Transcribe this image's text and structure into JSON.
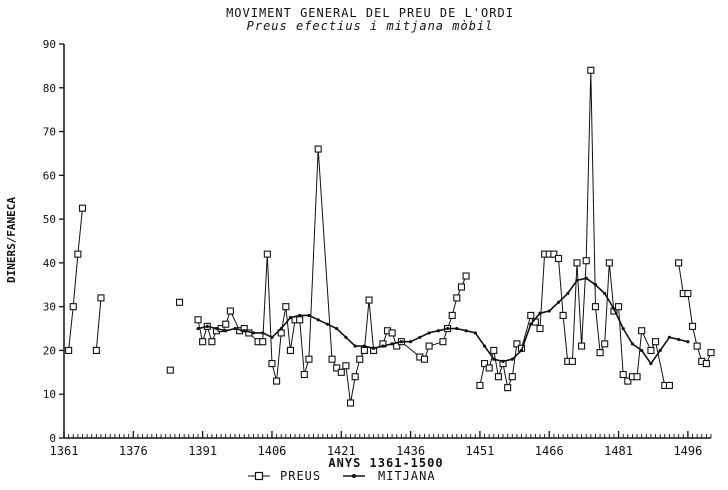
{
  "chart_data": {
    "type": "line",
    "title": "MOVIMENT GENERAL DEL PREU DE L'ORDI",
    "subtitle": "Preus efectius i mitjana mòbil",
    "xlabel": "ANYS 1361-1500",
    "ylabel": "DINERS/FANECA",
    "xlim": [
      1361,
      1501
    ],
    "ylim": [
      0,
      90
    ],
    "xticks": [
      1361,
      1376,
      1391,
      1406,
      1421,
      1436,
      1451,
      1466,
      1481,
      1496
    ],
    "yticks": [
      0,
      10,
      20,
      30,
      40,
      50,
      60,
      70,
      80,
      90
    ],
    "grid": false,
    "legend_position": "bottom-center",
    "series": [
      {
        "name": "PREUS",
        "marker": "square",
        "segments": [
          [
            [
              1362,
              20
            ],
            [
              1363,
              30
            ],
            [
              1364,
              42
            ],
            [
              1365,
              52.5
            ]
          ],
          [
            [
              1368,
              20
            ],
            [
              1369,
              32
            ]
          ],
          [
            [
              1384,
              15.5
            ]
          ],
          [
            [
              1386,
              31
            ]
          ],
          [
            [
              1390,
              27
            ],
            [
              1391,
              22
            ],
            [
              1392,
              25.5
            ],
            [
              1393,
              22
            ],
            [
              1394,
              24.5
            ],
            [
              1395,
              25
            ],
            [
              1396,
              26
            ],
            [
              1397,
              29
            ],
            [
              1399,
              24.5
            ],
            [
              1400,
              25
            ],
            [
              1401,
              24
            ],
            [
              1403,
              22
            ],
            [
              1404,
              22
            ],
            [
              1405,
              42
            ],
            [
              1406,
              17
            ],
            [
              1407,
              13
            ],
            [
              1408,
              24
            ],
            [
              1409,
              30
            ],
            [
              1410,
              20
            ],
            [
              1411,
              27
            ],
            [
              1412,
              27
            ],
            [
              1413,
              14.5
            ],
            [
              1414,
              18
            ],
            [
              1416,
              66
            ],
            [
              1419,
              18
            ],
            [
              1420,
              16
            ],
            [
              1421,
              15
            ],
            [
              1422,
              16.5
            ],
            [
              1423,
              8
            ],
            [
              1424,
              14
            ],
            [
              1425,
              18
            ],
            [
              1426,
              20
            ],
            [
              1427,
              31.5
            ],
            [
              1428,
              20
            ],
            [
              1430,
              21.5
            ],
            [
              1431,
              24.5
            ],
            [
              1432,
              24
            ],
            [
              1433,
              21
            ],
            [
              1434,
              22
            ],
            [
              1438,
              18.5
            ],
            [
              1439,
              18
            ],
            [
              1440,
              21
            ],
            [
              1443,
              22
            ],
            [
              1444,
              25
            ],
            [
              1445,
              28
            ],
            [
              1446,
              32
            ],
            [
              1447,
              34.5
            ],
            [
              1448,
              37
            ]
          ],
          [
            [
              1451,
              12
            ],
            [
              1452,
              17
            ],
            [
              1453,
              16
            ],
            [
              1454,
              20
            ],
            [
              1455,
              14
            ],
            [
              1456,
              17
            ],
            [
              1457,
              11.5
            ],
            [
              1458,
              14
            ],
            [
              1459,
              21.5
            ],
            [
              1460,
              20.5
            ],
            [
              1462,
              28
            ],
            [
              1463,
              26.5
            ],
            [
              1464,
              25
            ],
            [
              1465,
              42
            ],
            [
              1466,
              42
            ],
            [
              1467,
              42
            ],
            [
              1468,
              41
            ],
            [
              1469,
              28
            ],
            [
              1470,
              17.5
            ],
            [
              1471,
              17.5
            ],
            [
              1472,
              40
            ],
            [
              1473,
              21
            ],
            [
              1474,
              40.5
            ],
            [
              1475,
              84
            ],
            [
              1476,
              30
            ],
            [
              1477,
              19.5
            ],
            [
              1478,
              21.5
            ],
            [
              1479,
              40
            ],
            [
              1480,
              29
            ],
            [
              1481,
              30
            ],
            [
              1482,
              14.5
            ],
            [
              1483,
              13
            ],
            [
              1484,
              14
            ],
            [
              1485,
              14
            ],
            [
              1486,
              24.5
            ],
            [
              1488,
              20
            ],
            [
              1489,
              22
            ],
            [
              1491,
              12
            ],
            [
              1492,
              12
            ]
          ],
          [
            [
              1494,
              40
            ],
            [
              1495,
              33
            ],
            [
              1496,
              33
            ],
            [
              1497,
              25.5
            ],
            [
              1498,
              21
            ],
            [
              1499,
              17.5
            ],
            [
              1500,
              17
            ],
            [
              1501,
              19.5
            ]
          ]
        ]
      },
      {
        "name": "MITJANA",
        "marker": "dot",
        "segments": [
          [
            [
              1390,
              25
            ],
            [
              1392,
              25.5
            ],
            [
              1394,
              25
            ],
            [
              1396,
              24.5
            ],
            [
              1398,
              25
            ],
            [
              1400,
              24.5
            ],
            [
              1402,
              24
            ],
            [
              1404,
              24
            ],
            [
              1406,
              23
            ],
            [
              1408,
              25
            ],
            [
              1410,
              27.5
            ],
            [
              1412,
              28
            ],
            [
              1414,
              28
            ],
            [
              1416,
              27
            ],
            [
              1418,
              26
            ],
            [
              1420,
              25
            ],
            [
              1422,
              23
            ],
            [
              1424,
              21
            ],
            [
              1426,
              21
            ],
            [
              1428,
              20.5
            ],
            [
              1430,
              21
            ],
            [
              1432,
              21.5
            ],
            [
              1434,
              22
            ],
            [
              1436,
              22
            ],
            [
              1438,
              23
            ],
            [
              1440,
              24
            ],
            [
              1442,
              24.5
            ],
            [
              1444,
              25
            ],
            [
              1446,
              25
            ],
            [
              1448,
              24.5
            ],
            [
              1450,
              24
            ],
            [
              1452,
              21
            ],
            [
              1454,
              18
            ],
            [
              1456,
              17.5
            ],
            [
              1458,
              18
            ],
            [
              1460,
              20
            ],
            [
              1462,
              26
            ],
            [
              1464,
              28.5
            ],
            [
              1466,
              29
            ],
            [
              1468,
              31
            ],
            [
              1470,
              33
            ],
            [
              1472,
              36
            ],
            [
              1474,
              36.5
            ],
            [
              1476,
              35
            ],
            [
              1478,
              33
            ],
            [
              1480,
              29.5
            ],
            [
              1482,
              25
            ],
            [
              1484,
              21.5
            ],
            [
              1486,
              20
            ],
            [
              1488,
              17
            ],
            [
              1490,
              20
            ],
            [
              1492,
              23
            ],
            [
              1494,
              22.5
            ],
            [
              1496,
              22
            ]
          ]
        ]
      }
    ]
  }
}
